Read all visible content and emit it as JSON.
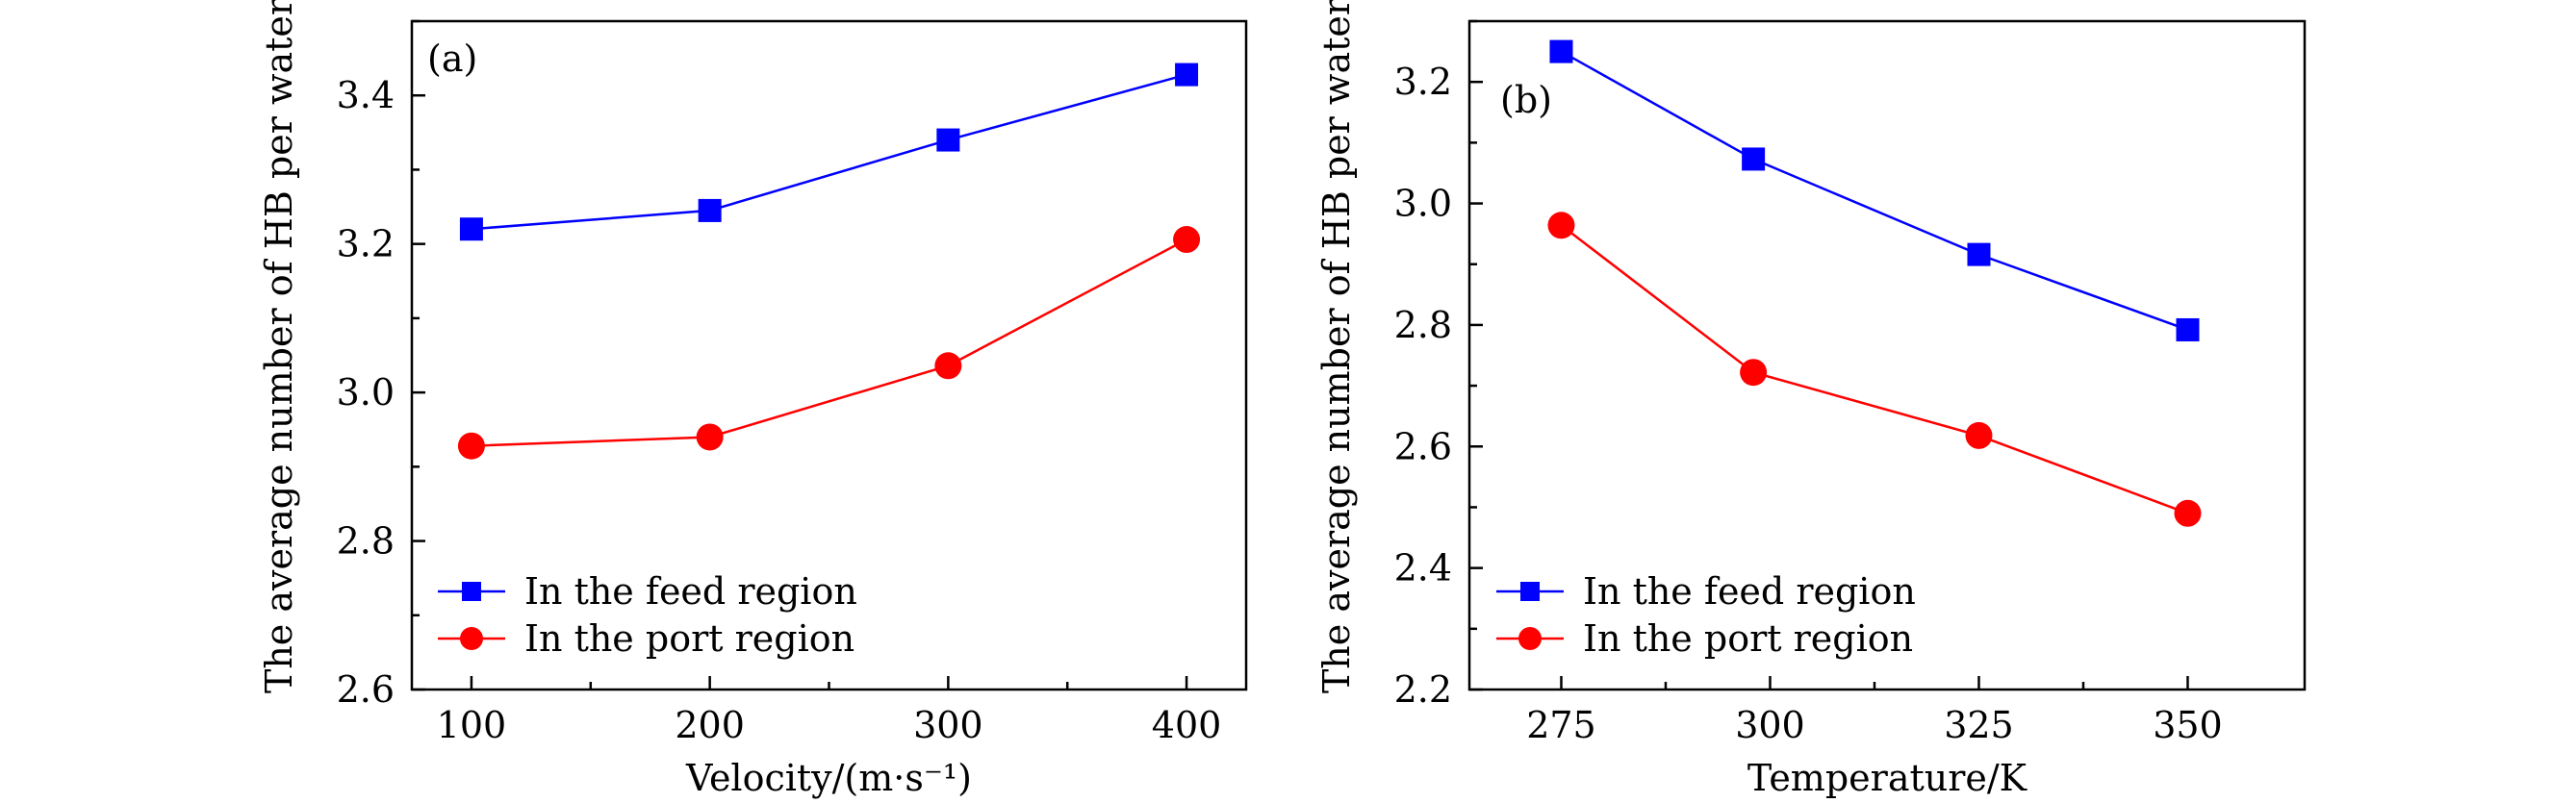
{
  "chart_data": [
    {
      "type": "line",
      "panel_label": "(a)",
      "xlabel": "Velocity/(m·s⁻¹)",
      "ylabel": "The average number of HB per water",
      "xlim": [
        75,
        425
      ],
      "ylim": [
        2.6,
        3.5
      ],
      "xticks": [
        100,
        200,
        300,
        400
      ],
      "xtick_labels": [
        "100",
        "200",
        "300",
        "400"
      ],
      "yticks": [
        2.6,
        2.8,
        3.0,
        3.2,
        3.4
      ],
      "ytick_labels": [
        "2.6",
        "2.8",
        "3.0",
        "3.2",
        "3.4"
      ],
      "x": [
        100,
        200,
        300,
        400
      ],
      "legend_position": "lower-left",
      "series": [
        {
          "name": "In the feed region",
          "values": [
            3.22,
            3.245,
            3.34,
            3.428
          ],
          "color": "#0000ff",
          "marker": "square"
        },
        {
          "name": "In the port region",
          "values": [
            2.928,
            2.94,
            3.036,
            3.206
          ],
          "color": "#ff0000",
          "marker": "circle"
        }
      ]
    },
    {
      "type": "line",
      "panel_label": "(b)",
      "xlabel": "Temperature/K",
      "ylabel": "The average number of HB per water",
      "xlim": [
        264,
        364
      ],
      "ylim": [
        2.2,
        3.3
      ],
      "xticks": [
        275,
        300,
        325,
        350
      ],
      "xtick_labels": [
        "275",
        "300",
        "325",
        "350"
      ],
      "yticks": [
        2.2,
        2.4,
        2.6,
        2.8,
        3.0,
        3.2
      ],
      "ytick_labels": [
        "2.2",
        "2.4",
        "2.6",
        "2.8",
        "3.0",
        "3.2"
      ],
      "x": [
        275,
        298,
        325,
        350
      ],
      "legend_position": "lower-left",
      "series": [
        {
          "name": "In the feed region",
          "values": [
            3.25,
            3.073,
            2.916,
            2.792
          ],
          "color": "#0000ff",
          "marker": "square"
        },
        {
          "name": "In the port region",
          "values": [
            2.964,
            2.722,
            2.618,
            2.49
          ],
          "color": "#ff0000",
          "marker": "circle"
        }
      ]
    }
  ]
}
